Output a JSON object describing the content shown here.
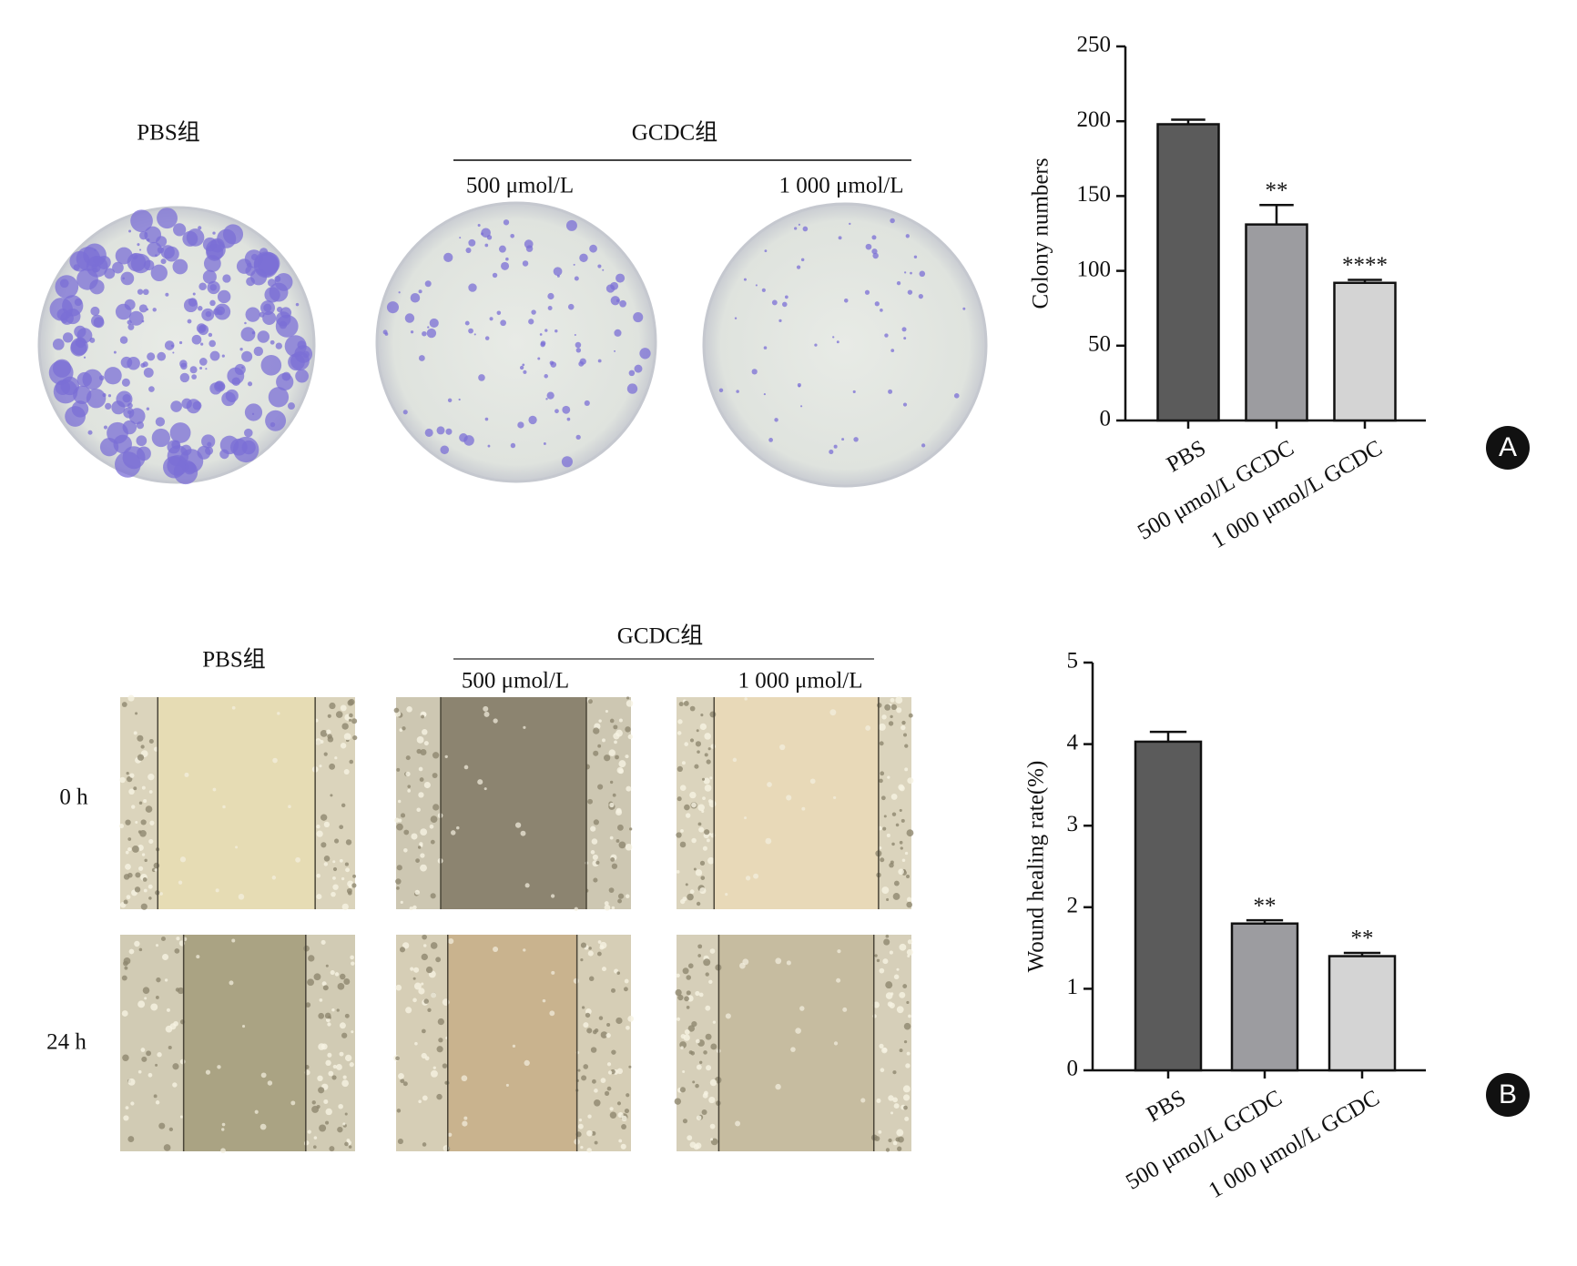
{
  "chart_data": [
    {
      "type": "bar",
      "ylabel": "Colony numbers",
      "categories": [
        "PBS",
        "500 μmol/L GCDC",
        "1 000 μmol/L GCDC"
      ],
      "values": [
        198,
        131,
        92
      ],
      "errors": [
        3,
        13,
        2
      ],
      "significance": [
        null,
        "**",
        "****"
      ],
      "colors": [
        "#5b5b5b",
        "#9c9ca0",
        "#d4d4d4"
      ],
      "ylim": [
        0,
        250
      ],
      "yticks": [
        0,
        50,
        100,
        150,
        200,
        250
      ],
      "grid": false,
      "panel": "A"
    },
    {
      "type": "bar",
      "ylabel": "Wound healing rate(%)",
      "categories": [
        "PBS",
        "500 μmol/L GCDC",
        "1 000 μmol/L GCDC"
      ],
      "values": [
        4.03,
        1.8,
        1.4
      ],
      "errors": [
        0.12,
        0.04,
        0.04
      ],
      "significance": [
        null,
        "**",
        "**"
      ],
      "colors": [
        "#5b5b5b",
        "#9c9ca0",
        "#d4d4d4"
      ],
      "ylim": [
        0,
        5
      ],
      "yticks": [
        0,
        1,
        2,
        3,
        4,
        5
      ],
      "grid": false,
      "panel": "B"
    }
  ],
  "colony_photos": {
    "pbs": "PBS组",
    "gcdc": "GCDC组",
    "low": "500 μmol/L",
    "high": "1 000 μmol/L"
  },
  "wound_photos": {
    "pbs": "PBS组",
    "gcdc": "GCDC组",
    "low": "500 μmol/L",
    "high": "1 000 μmol/L",
    "rows": [
      "0 h",
      "24 h"
    ]
  }
}
